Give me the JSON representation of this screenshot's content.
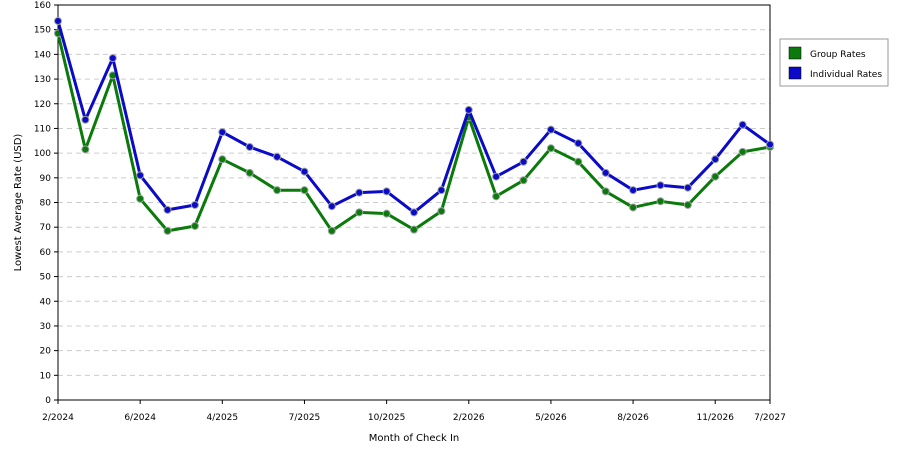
{
  "chart_data": {
    "type": "line",
    "title": "",
    "xlabel": "Month of Check In",
    "ylabel": "Lowest Average Rate (USD)",
    "ylim": [
      0,
      160
    ],
    "yticks": [
      "0",
      "10",
      "20",
      "30",
      "40",
      "50",
      "60",
      "70",
      "80",
      "90",
      "100",
      "110",
      "120",
      "130",
      "140",
      "150",
      "160"
    ],
    "x_tick_labels": [
      {
        "index": 0,
        "label": "2/2024"
      },
      {
        "index": 3,
        "label": "6/2024"
      },
      {
        "index": 6,
        "label": "4/2025"
      },
      {
        "index": 9,
        "label": "7/2025"
      },
      {
        "index": 12,
        "label": "10/2025"
      },
      {
        "index": 15,
        "label": "2/2026"
      },
      {
        "index": 18,
        "label": "5/2026"
      },
      {
        "index": 21,
        "label": "8/2026"
      },
      {
        "index": 24,
        "label": "11/2026"
      },
      {
        "index": 26,
        "label": "7/2027"
      }
    ],
    "grid": true,
    "legend_position": "right",
    "series": [
      {
        "name": "Group Rates",
        "color": "#0a7a0a",
        "values": [
          148.5,
          101.5,
          131.5,
          81.5,
          68.5,
          70.5,
          97.5,
          92,
          85,
          85,
          68.5,
          76,
          75.5,
          69,
          76.5,
          114.5,
          82.5,
          89,
          102,
          96.5,
          84.5,
          78,
          80.5,
          79,
          90.5,
          100.5,
          102.5
        ]
      },
      {
        "name": "Individual Rates",
        "color": "#0a0ac8",
        "values": [
          153.5,
          113.5,
          138.5,
          91,
          77,
          79,
          108.5,
          102.5,
          98.5,
          92.5,
          78.5,
          84,
          84.5,
          76,
          85,
          117.5,
          90.5,
          96.5,
          109.5,
          104,
          92,
          85,
          87,
          86,
          97.5,
          111.5,
          103.5
        ]
      }
    ]
  }
}
